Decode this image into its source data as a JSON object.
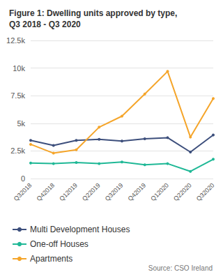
{
  "chart_data": {
    "type": "line",
    "title": "Figure 1: Dwelling units approved by type,\nQ3 2018 - Q3 2020",
    "source": "Source: CSO Ireland",
    "categories": [
      "Q32018",
      "Q42018",
      "Q12019",
      "Q22019",
      "Q32019",
      "Q42019",
      "Q12020",
      "Q22020",
      "Q32020"
    ],
    "series": [
      {
        "name": "Multi Development Houses",
        "color": "#3d4f7c",
        "values": [
          3450,
          3000,
          3450,
          3550,
          3400,
          3600,
          3700,
          2400,
          3950
        ]
      },
      {
        "name": "One-off Houses",
        "color": "#1fb896",
        "values": [
          1400,
          1350,
          1450,
          1350,
          1500,
          1250,
          1350,
          650,
          1750
        ]
      },
      {
        "name": "Apartments",
        "color": "#f5a52a",
        "values": [
          3100,
          2300,
          2600,
          4650,
          5650,
          7650,
          9700,
          3750,
          7250
        ]
      }
    ],
    "ylim": [
      0,
      12500
    ],
    "yticks": [
      0,
      {
        "value": 2500,
        "label": "2.5k"
      },
      {
        "value": 5000,
        "label": "5k"
      },
      {
        "value": 7500,
        "label": "7.5k"
      },
      {
        "value": 10000,
        "label": "10k"
      },
      {
        "value": 12500,
        "label": "12.5k"
      }
    ],
    "grid": true,
    "legend": "bottom",
    "marker": "circle"
  }
}
